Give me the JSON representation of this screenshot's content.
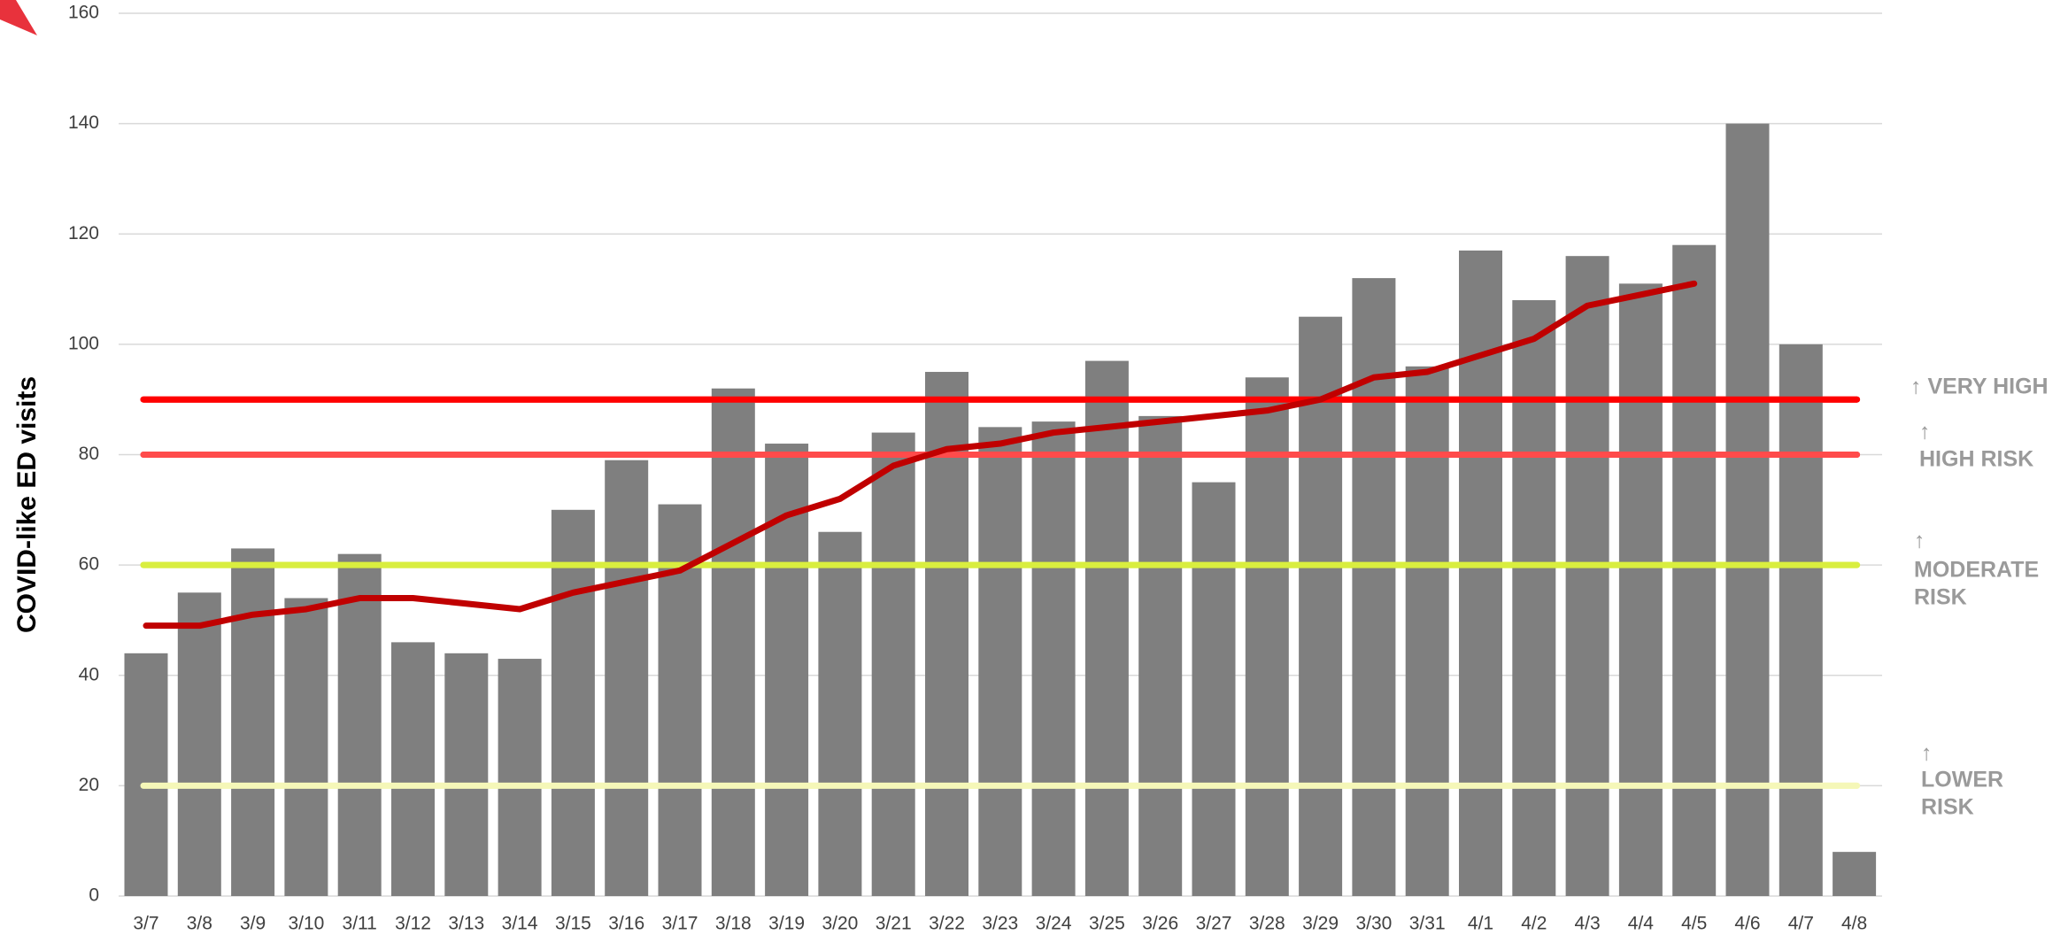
{
  "chart_data": {
    "type": "bar",
    "y_axis_label": "COVID-like ED visits",
    "categories": [
      "3/7",
      "3/8",
      "3/9",
      "3/10",
      "3/11",
      "3/12",
      "3/13",
      "3/14",
      "3/15",
      "3/16",
      "3/17",
      "3/18",
      "3/19",
      "3/20",
      "3/21",
      "3/22",
      "3/23",
      "3/24",
      "3/25",
      "3/26",
      "3/27",
      "3/28",
      "3/29",
      "3/30",
      "3/31",
      "4/1",
      "4/2",
      "4/3",
      "4/4",
      "4/5",
      "4/6",
      "4/7",
      "4/8"
    ],
    "series": [
      {
        "type": "bar",
        "color": "#7f7f7f",
        "values": [
          44,
          55,
          63,
          54,
          62,
          46,
          44,
          43,
          70,
          79,
          71,
          92,
          82,
          66,
          84,
          95,
          85,
          86,
          97,
          87,
          75,
          94,
          105,
          112,
          96,
          117,
          108,
          116,
          111,
          118,
          140,
          100,
          8
        ]
      },
      {
        "type": "line",
        "color": "#c00000",
        "values": [
          49,
          49,
          51,
          52,
          54,
          54,
          53,
          52,
          55,
          57,
          59,
          64,
          69,
          72,
          78,
          81,
          82,
          84,
          85,
          86,
          87,
          88,
          90,
          94,
          95,
          98,
          101,
          107,
          109,
          111,
          null,
          null,
          null
        ]
      }
    ],
    "thresholds": [
      {
        "value": 90,
        "color": "#ff0000",
        "label_lines": [
          "↑ VERY HIGH"
        ]
      },
      {
        "value": 80,
        "color": "#ff4b4b",
        "label_lines": [
          "↑",
          "HIGH RISK"
        ]
      },
      {
        "value": 60,
        "color": "#d9ee3f",
        "label_lines": [
          "↑",
          "MODERATE",
          "RISK"
        ]
      },
      {
        "value": 20,
        "color": "#f5f7b8",
        "label_lines": [
          "↑",
          "LOWER",
          "RISK"
        ]
      }
    ],
    "ylim": [
      0,
      160
    ],
    "yticks": [
      0,
      20,
      40,
      60,
      80,
      100,
      120,
      140,
      160
    ],
    "grid": true
  }
}
